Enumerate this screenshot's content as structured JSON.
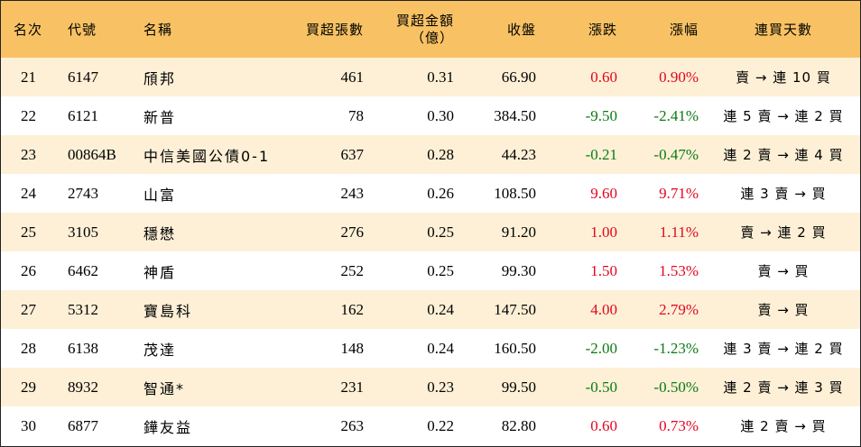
{
  "headers": {
    "rank": "名次",
    "code": "代號",
    "name": "名稱",
    "net_buy_lots": "買超張數",
    "net_buy_amount": "買超金額",
    "net_buy_amount_unit": "（億）",
    "close": "收盤",
    "change": "漲跌",
    "change_pct": "漲幅",
    "streak": "連買天數"
  },
  "colors": {
    "header_bg": "#f8c264",
    "odd_row_bg": "#fdf0d6",
    "up": "#e4051f",
    "down": "#0b7a14"
  },
  "rows": [
    {
      "rank": "21",
      "code": "6147",
      "name": "頎邦",
      "lots": "461",
      "amount": "0.31",
      "close": "66.90",
      "change": "0.60",
      "pct": "0.90%",
      "streak": "賣 → 連 10 買",
      "dir": "up"
    },
    {
      "rank": "22",
      "code": "6121",
      "name": "新普",
      "lots": "78",
      "amount": "0.30",
      "close": "384.50",
      "change": "-9.50",
      "pct": "-2.41%",
      "streak": "連 5 賣 → 連 2 買",
      "dir": "down"
    },
    {
      "rank": "23",
      "code": "00864B",
      "name": "中信美國公債0-1",
      "lots": "637",
      "amount": "0.28",
      "close": "44.23",
      "change": "-0.21",
      "pct": "-0.47%",
      "streak": "連 2 賣 → 連 4 買",
      "dir": "down"
    },
    {
      "rank": "24",
      "code": "2743",
      "name": "山富",
      "lots": "243",
      "amount": "0.26",
      "close": "108.50",
      "change": "9.60",
      "pct": "9.71%",
      "streak": "連 3 賣 → 買",
      "dir": "up"
    },
    {
      "rank": "25",
      "code": "3105",
      "name": "穩懋",
      "lots": "276",
      "amount": "0.25",
      "close": "91.20",
      "change": "1.00",
      "pct": "1.11%",
      "streak": "賣 → 連 2 買",
      "dir": "up"
    },
    {
      "rank": "26",
      "code": "6462",
      "name": "神盾",
      "lots": "252",
      "amount": "0.25",
      "close": "99.30",
      "change": "1.50",
      "pct": "1.53%",
      "streak": "賣 → 買",
      "dir": "up"
    },
    {
      "rank": "27",
      "code": "5312",
      "name": "寶島科",
      "lots": "162",
      "amount": "0.24",
      "close": "147.50",
      "change": "4.00",
      "pct": "2.79%",
      "streak": "賣 → 買",
      "dir": "up"
    },
    {
      "rank": "28",
      "code": "6138",
      "name": "茂達",
      "lots": "148",
      "amount": "0.24",
      "close": "160.50",
      "change": "-2.00",
      "pct": "-1.23%",
      "streak": "連 3 賣 → 連 2 買",
      "dir": "down"
    },
    {
      "rank": "29",
      "code": "8932",
      "name": "智通*",
      "lots": "231",
      "amount": "0.23",
      "close": "99.50",
      "change": "-0.50",
      "pct": "-0.50%",
      "streak": "連 2 賣 → 連 3 買",
      "dir": "down"
    },
    {
      "rank": "30",
      "code": "6877",
      "name": "鏵友益",
      "lots": "263",
      "amount": "0.22",
      "close": "82.80",
      "change": "0.60",
      "pct": "0.73%",
      "streak": "連 2 賣 → 買",
      "dir": "up"
    }
  ]
}
